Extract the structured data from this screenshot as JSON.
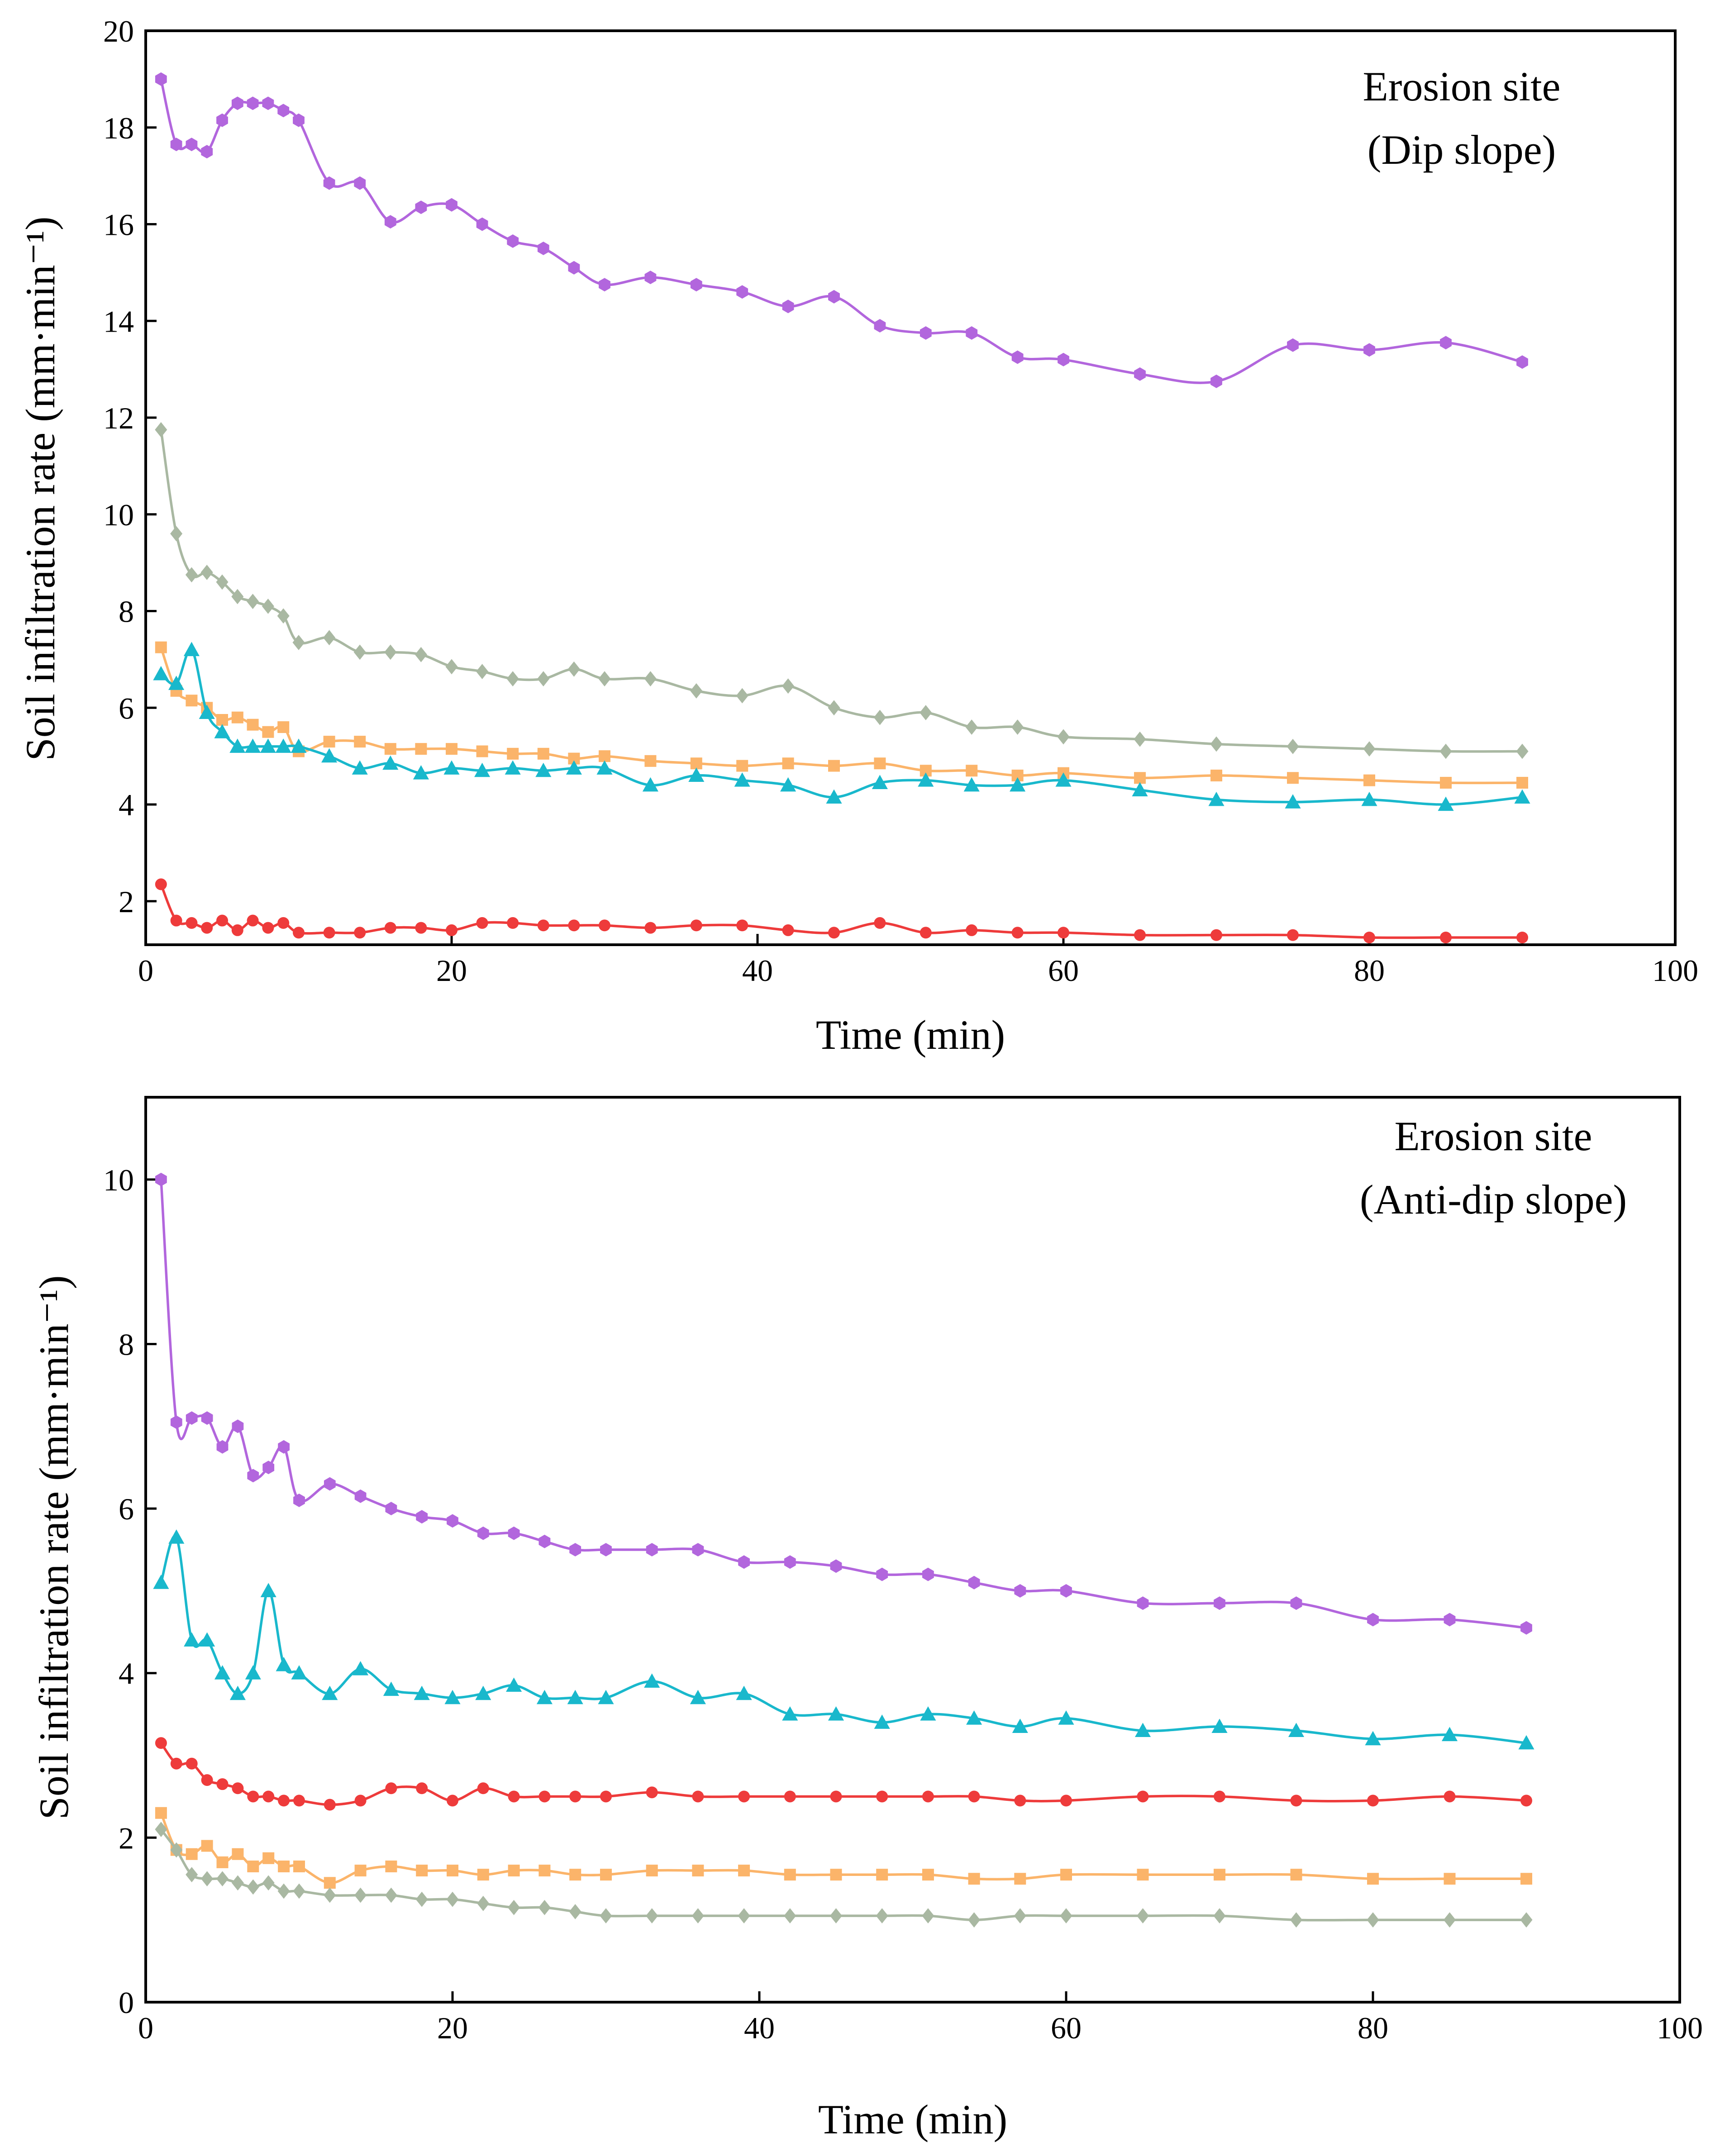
{
  "chart_data": [
    {
      "type": "line",
      "annotation": [
        "Erosion site",
        "(Dip slope)"
      ],
      "xlabel": "Time (min)",
      "ylabel": "Soil infiltration rate (mm·min⁻¹)",
      "xlim": [
        0,
        100
      ],
      "ylim": [
        1.1,
        20
      ],
      "xticks": [
        0,
        20,
        40,
        60,
        80,
        100
      ],
      "yticks": [
        2,
        4,
        6,
        8,
        10,
        12,
        14,
        16,
        18,
        20
      ],
      "grid": false,
      "series": [
        {
          "name": "purple",
          "color": "#b266dd",
          "marker": "hexagon",
          "x": [
            1,
            2,
            3,
            4,
            5,
            6,
            7,
            8,
            9,
            10,
            12,
            14,
            16,
            18,
            20,
            22,
            24,
            26,
            28,
            30,
            33,
            36,
            39,
            42,
            45,
            48,
            51,
            54,
            57,
            60,
            65,
            70,
            75,
            80,
            85,
            90
          ],
          "y": [
            19.0,
            17.65,
            17.65,
            17.5,
            18.15,
            18.5,
            18.5,
            18.5,
            18.35,
            18.15,
            16.85,
            16.85,
            16.05,
            16.35,
            16.4,
            16.0,
            15.65,
            15.5,
            15.1,
            14.75,
            14.9,
            14.75,
            14.6,
            14.3,
            14.5,
            13.9,
            13.75,
            13.75,
            13.25,
            13.2,
            12.9,
            12.75,
            13.5,
            13.4,
            13.55,
            13.15
          ]
        },
        {
          "name": "grey-green",
          "color": "#a9b8a2",
          "marker": "diamond",
          "x": [
            1,
            2,
            3,
            4,
            5,
            6,
            7,
            8,
            9,
            10,
            12,
            14,
            16,
            18,
            20,
            22,
            24,
            26,
            28,
            30,
            33,
            36,
            39,
            42,
            45,
            48,
            51,
            54,
            57,
            60,
            65,
            70,
            75,
            80,
            85,
            90
          ],
          "y": [
            11.75,
            9.6,
            8.75,
            8.8,
            8.6,
            8.3,
            8.2,
            8.1,
            7.9,
            7.35,
            7.45,
            7.15,
            7.15,
            7.1,
            6.85,
            6.75,
            6.6,
            6.6,
            6.8,
            6.6,
            6.6,
            6.35,
            6.25,
            6.45,
            6.0,
            5.8,
            5.9,
            5.6,
            5.6,
            5.4,
            5.35,
            5.25,
            5.2,
            5.15,
            5.1,
            5.1
          ]
        },
        {
          "name": "orange",
          "color": "#fbb46a",
          "marker": "square",
          "x": [
            1,
            2,
            3,
            4,
            5,
            6,
            7,
            8,
            9,
            10,
            12,
            14,
            16,
            18,
            20,
            22,
            24,
            26,
            28,
            30,
            33,
            36,
            39,
            42,
            45,
            48,
            51,
            54,
            57,
            60,
            65,
            70,
            75,
            80,
            85,
            90
          ],
          "y": [
            7.25,
            6.35,
            6.15,
            6.0,
            5.75,
            5.8,
            5.65,
            5.5,
            5.6,
            5.1,
            5.3,
            5.3,
            5.15,
            5.15,
            5.15,
            5.1,
            5.05,
            5.05,
            4.95,
            5.0,
            4.9,
            4.85,
            4.8,
            4.85,
            4.8,
            4.85,
            4.7,
            4.7,
            4.6,
            4.65,
            4.55,
            4.6,
            4.55,
            4.5,
            4.45,
            4.45
          ]
        },
        {
          "name": "cyan",
          "color": "#19b8cc",
          "marker": "triangle",
          "x": [
            1,
            2,
            3,
            4,
            5,
            6,
            7,
            8,
            9,
            10,
            12,
            14,
            16,
            18,
            20,
            22,
            24,
            26,
            28,
            30,
            33,
            36,
            39,
            42,
            45,
            48,
            51,
            54,
            57,
            60,
            65,
            70,
            75,
            80,
            85,
            90
          ],
          "y": [
            6.7,
            6.5,
            7.2,
            5.9,
            5.5,
            5.2,
            5.2,
            5.2,
            5.2,
            5.2,
            5.0,
            4.75,
            4.85,
            4.65,
            4.75,
            4.7,
            4.75,
            4.7,
            4.75,
            4.75,
            4.4,
            4.6,
            4.5,
            4.4,
            4.15,
            4.45,
            4.5,
            4.4,
            4.4,
            4.5,
            4.3,
            4.1,
            4.05,
            4.1,
            4.0,
            4.15
          ]
        },
        {
          "name": "red",
          "color": "#ee3b3b",
          "marker": "circle",
          "x": [
            1,
            2,
            3,
            4,
            5,
            6,
            7,
            8,
            9,
            10,
            12,
            14,
            16,
            18,
            20,
            22,
            24,
            26,
            28,
            30,
            33,
            36,
            39,
            42,
            45,
            48,
            51,
            54,
            57,
            60,
            65,
            70,
            75,
            80,
            85,
            90
          ],
          "y": [
            2.35,
            1.6,
            1.55,
            1.45,
            1.6,
            1.4,
            1.6,
            1.45,
            1.55,
            1.35,
            1.35,
            1.35,
            1.45,
            1.45,
            1.4,
            1.55,
            1.55,
            1.5,
            1.5,
            1.5,
            1.45,
            1.5,
            1.5,
            1.4,
            1.35,
            1.55,
            1.35,
            1.4,
            1.35,
            1.35,
            1.3,
            1.3,
            1.3,
            1.25,
            1.25,
            1.25
          ]
        }
      ]
    },
    {
      "type": "line",
      "annotation": [
        "Erosion site",
        "(Anti-dip slope)"
      ],
      "xlabel": "Time (min)",
      "ylabel": "Soil infiltration rate (mm·min⁻¹)",
      "xlim": [
        0,
        100
      ],
      "ylim": [
        0,
        11
      ],
      "xticks": [
        0,
        20,
        40,
        60,
        80,
        100
      ],
      "yticks": [
        0,
        2,
        4,
        6,
        8,
        10
      ],
      "grid": false,
      "series": [
        {
          "name": "purple",
          "color": "#b266dd",
          "marker": "hexagon",
          "x": [
            1,
            2,
            3,
            4,
            5,
            6,
            7,
            8,
            9,
            10,
            12,
            14,
            16,
            18,
            20,
            22,
            24,
            26,
            28,
            30,
            33,
            36,
            39,
            42,
            45,
            48,
            51,
            54,
            57,
            60,
            65,
            70,
            75,
            80,
            85,
            90
          ],
          "y": [
            10.0,
            7.05,
            7.1,
            7.1,
            6.75,
            7.0,
            6.4,
            6.5,
            6.75,
            6.1,
            6.3,
            6.15,
            6.0,
            5.9,
            5.85,
            5.7,
            5.7,
            5.6,
            5.5,
            5.5,
            5.5,
            5.5,
            5.35,
            5.35,
            5.3,
            5.2,
            5.2,
            5.1,
            5.0,
            5.0,
            4.85,
            4.85,
            4.85,
            4.65,
            4.65,
            4.55
          ]
        },
        {
          "name": "cyan",
          "color": "#19b8cc",
          "marker": "triangle",
          "x": [
            1,
            2,
            3,
            4,
            5,
            6,
            7,
            8,
            9,
            10,
            12,
            14,
            16,
            18,
            20,
            22,
            24,
            26,
            28,
            30,
            33,
            36,
            39,
            42,
            45,
            48,
            51,
            54,
            57,
            60,
            65,
            70,
            75,
            80,
            85,
            90
          ],
          "y": [
            5.1,
            5.65,
            4.4,
            4.4,
            4.0,
            3.75,
            4.0,
            5.0,
            4.1,
            4.0,
            3.75,
            4.05,
            3.8,
            3.75,
            3.7,
            3.75,
            3.85,
            3.7,
            3.7,
            3.7,
            3.9,
            3.7,
            3.75,
            3.5,
            3.5,
            3.4,
            3.5,
            3.45,
            3.35,
            3.45,
            3.3,
            3.35,
            3.3,
            3.2,
            3.25,
            3.15
          ]
        },
        {
          "name": "red",
          "color": "#ee3b3b",
          "marker": "circle",
          "x": [
            1,
            2,
            3,
            4,
            5,
            6,
            7,
            8,
            9,
            10,
            12,
            14,
            16,
            18,
            20,
            22,
            24,
            26,
            28,
            30,
            33,
            36,
            39,
            42,
            45,
            48,
            51,
            54,
            57,
            60,
            65,
            70,
            75,
            80,
            85,
            90
          ],
          "y": [
            3.15,
            2.9,
            2.9,
            2.7,
            2.65,
            2.6,
            2.5,
            2.5,
            2.45,
            2.45,
            2.4,
            2.45,
            2.6,
            2.6,
            2.45,
            2.6,
            2.5,
            2.5,
            2.5,
            2.5,
            2.55,
            2.5,
            2.5,
            2.5,
            2.5,
            2.5,
            2.5,
            2.5,
            2.45,
            2.45,
            2.5,
            2.5,
            2.45,
            2.45,
            2.5,
            2.45
          ]
        },
        {
          "name": "orange",
          "color": "#fbb46a",
          "marker": "square",
          "x": [
            1,
            2,
            3,
            4,
            5,
            6,
            7,
            8,
            9,
            10,
            12,
            14,
            16,
            18,
            20,
            22,
            24,
            26,
            28,
            30,
            33,
            36,
            39,
            42,
            45,
            48,
            51,
            54,
            57,
            60,
            65,
            70,
            75,
            80,
            85,
            90
          ],
          "y": [
            2.3,
            1.85,
            1.8,
            1.9,
            1.7,
            1.8,
            1.65,
            1.75,
            1.65,
            1.65,
            1.45,
            1.6,
            1.65,
            1.6,
            1.6,
            1.55,
            1.6,
            1.6,
            1.55,
            1.55,
            1.6,
            1.6,
            1.6,
            1.55,
            1.55,
            1.55,
            1.55,
            1.5,
            1.5,
            1.55,
            1.55,
            1.55,
            1.55,
            1.5,
            1.5,
            1.5
          ]
        },
        {
          "name": "grey-green",
          "color": "#a9b8a2",
          "marker": "diamond",
          "x": [
            1,
            2,
            3,
            4,
            5,
            6,
            7,
            8,
            9,
            10,
            12,
            14,
            16,
            18,
            20,
            22,
            24,
            26,
            28,
            30,
            33,
            36,
            39,
            42,
            45,
            48,
            51,
            54,
            57,
            60,
            65,
            70,
            75,
            80,
            85,
            90
          ],
          "y": [
            2.1,
            1.85,
            1.55,
            1.5,
            1.5,
            1.45,
            1.4,
            1.45,
            1.35,
            1.35,
            1.3,
            1.3,
            1.3,
            1.25,
            1.25,
            1.2,
            1.15,
            1.15,
            1.1,
            1.05,
            1.05,
            1.05,
            1.05,
            1.05,
            1.05,
            1.05,
            1.05,
            1.0,
            1.05,
            1.05,
            1.05,
            1.05,
            1.0,
            1.0,
            1.0,
            1.0
          ]
        }
      ]
    }
  ]
}
